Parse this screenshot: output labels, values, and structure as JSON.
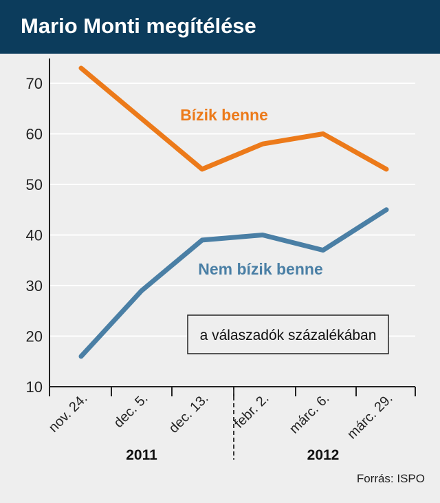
{
  "chart_title": "Mario Monti megítélése",
  "source": "Forrás: ISPO",
  "colors": {
    "header_bg": "#0c3c5c",
    "trust": "#ec7a1a",
    "distrust": "#4a7fa5"
  },
  "chart_data": {
    "type": "line",
    "title": "Mario Monti megítélése",
    "categories": [
      "nov. 24.",
      "dec. 5.",
      "dec. 13.",
      "febr. 2.",
      "márc. 6.",
      "márc. 29."
    ],
    "years": [
      "2011",
      "2012"
    ],
    "unit_note": "a válaszadók százalékában",
    "ylim": [
      10,
      75
    ],
    "yticks": [
      10,
      20,
      30,
      40,
      50,
      60,
      70
    ],
    "grid": true,
    "series": [
      {
        "name": "Bízik benne",
        "values": [
          73,
          63,
          53,
          58,
          60,
          53
        ]
      },
      {
        "name": "Nem bízik benne",
        "values": [
          16,
          29,
          39,
          40,
          37,
          45
        ]
      }
    ]
  }
}
